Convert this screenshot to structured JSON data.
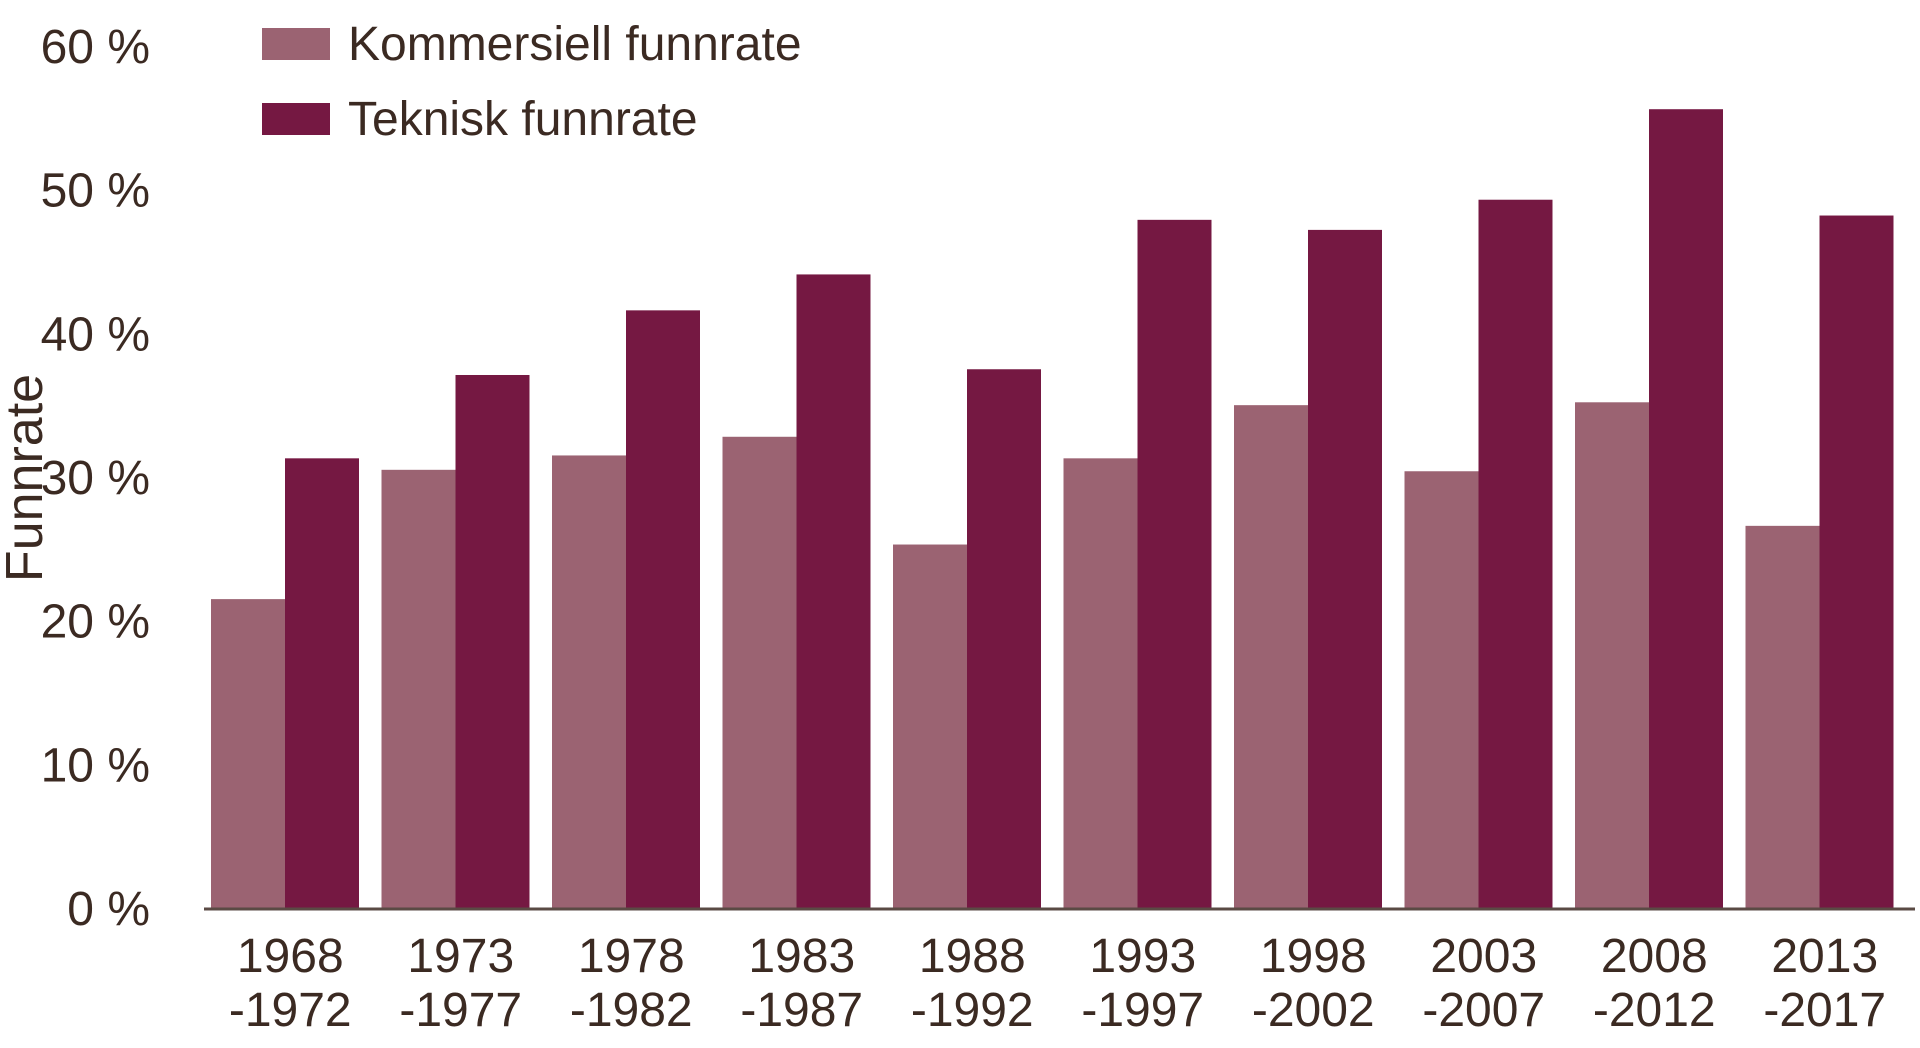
{
  "chart_data": {
    "type": "bar",
    "ylabel": "Funnrate",
    "ylim": [
      0,
      60
    ],
    "y_ticks": [
      "0 %",
      "10 %",
      "20 %",
      "30 %",
      "40 %",
      "50 %",
      "60 %"
    ],
    "y_tick_values": [
      0,
      10,
      20,
      30,
      40,
      50,
      60
    ],
    "categories": [
      [
        "1968",
        "-1972"
      ],
      [
        "1973",
        "-1977"
      ],
      [
        "1978",
        "-1982"
      ],
      [
        "1983",
        "-1987"
      ],
      [
        "1988",
        "-1992"
      ],
      [
        "1993",
        "-1997"
      ],
      [
        "1998",
        "-2002"
      ],
      [
        "2003",
        "-2007"
      ],
      [
        "2008",
        "-2012"
      ],
      [
        "2013",
        "-2017"
      ]
    ],
    "series": [
      {
        "name": "Kommersiell funnrate",
        "color": "#9b6372",
        "values": [
          21.5,
          30.5,
          31.5,
          32.8,
          25.3,
          31.3,
          35.0,
          30.4,
          35.2,
          26.6
        ]
      },
      {
        "name": "Teknisk funnrate",
        "color": "#751842",
        "values": [
          31.3,
          37.1,
          41.6,
          44.1,
          37.5,
          47.9,
          47.2,
          49.3,
          55.6,
          48.2
        ]
      }
    ],
    "legend_position": "top-left",
    "grid": false
  }
}
